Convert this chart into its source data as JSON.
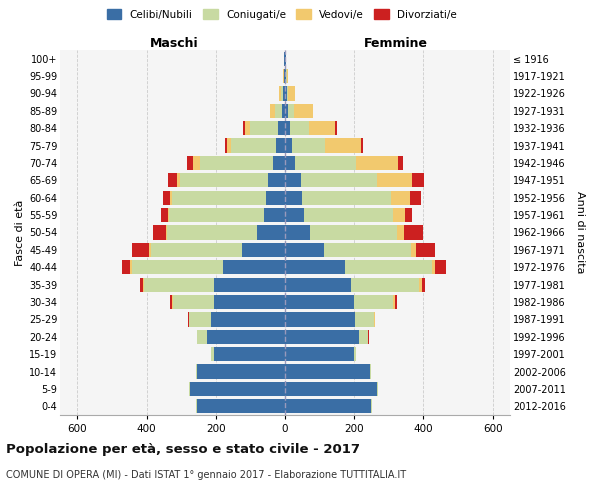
{
  "age_groups": [
    "0-4",
    "5-9",
    "10-14",
    "15-19",
    "20-24",
    "25-29",
    "30-34",
    "35-39",
    "40-44",
    "45-49",
    "50-54",
    "55-59",
    "60-64",
    "65-69",
    "70-74",
    "75-79",
    "80-84",
    "85-89",
    "90-94",
    "95-99",
    "100+"
  ],
  "birth_years": [
    "2012-2016",
    "2007-2011",
    "2002-2006",
    "1997-2001",
    "1992-1996",
    "1987-1991",
    "1982-1986",
    "1977-1981",
    "1972-1976",
    "1967-1971",
    "1962-1966",
    "1957-1961",
    "1952-1956",
    "1947-1951",
    "1942-1946",
    "1937-1941",
    "1932-1936",
    "1927-1931",
    "1922-1926",
    "1917-1921",
    "≤ 1916"
  ],
  "males": {
    "celibi": [
      255,
      275,
      255,
      205,
      225,
      215,
      205,
      205,
      180,
      125,
      82,
      62,
      55,
      50,
      35,
      25,
      20,
      8,
      5,
      2,
      2
    ],
    "coniugati": [
      3,
      3,
      3,
      8,
      28,
      62,
      120,
      202,
      262,
      262,
      258,
      272,
      272,
      252,
      212,
      132,
      82,
      20,
      8,
      2,
      0
    ],
    "vedovi": [
      0,
      0,
      0,
      0,
      0,
      1,
      2,
      3,
      5,
      5,
      5,
      5,
      5,
      10,
      20,
      10,
      15,
      15,
      5,
      1,
      0
    ],
    "divorziati": [
      0,
      0,
      0,
      0,
      1,
      2,
      5,
      10,
      25,
      50,
      35,
      20,
      20,
      25,
      15,
      5,
      5,
      0,
      0,
      0,
      0
    ]
  },
  "females": {
    "nubili": [
      248,
      265,
      245,
      198,
      215,
      202,
      198,
      192,
      172,
      112,
      72,
      56,
      50,
      45,
      30,
      20,
      15,
      10,
      5,
      3,
      2
    ],
    "coniugate": [
      3,
      3,
      3,
      8,
      25,
      55,
      115,
      195,
      252,
      252,
      252,
      257,
      257,
      222,
      175,
      95,
      55,
      15,
      5,
      2,
      0
    ],
    "vedove": [
      0,
      0,
      0,
      0,
      1,
      2,
      5,
      8,
      10,
      15,
      20,
      35,
      55,
      100,
      120,
      105,
      75,
      55,
      20,
      5,
      2
    ],
    "divorziate": [
      0,
      0,
      0,
      0,
      1,
      2,
      5,
      10,
      30,
      55,
      55,
      20,
      30,
      35,
      15,
      5,
      5,
      2,
      0,
      0,
      0
    ]
  },
  "colors": {
    "celibi": "#3a6ea5",
    "coniugati": "#c8daa2",
    "vedovi": "#f2c96e",
    "divorziati": "#cc2020"
  },
  "xlim": 650,
  "title": "Popolazione per età, sesso e stato civile - 2017",
  "subtitle": "COMUNE DI OPERA (MI) - Dati ISTAT 1° gennaio 2017 - Elaborazione TUTTITALIA.IT",
  "ylabel": "Fasce di età",
  "ylabel2": "Anni di nascita",
  "xlabel_maschi": "Maschi",
  "xlabel_femmine": "Femmine",
  "bg_color": "#f5f5f5",
  "grid_color": "#cccccc"
}
